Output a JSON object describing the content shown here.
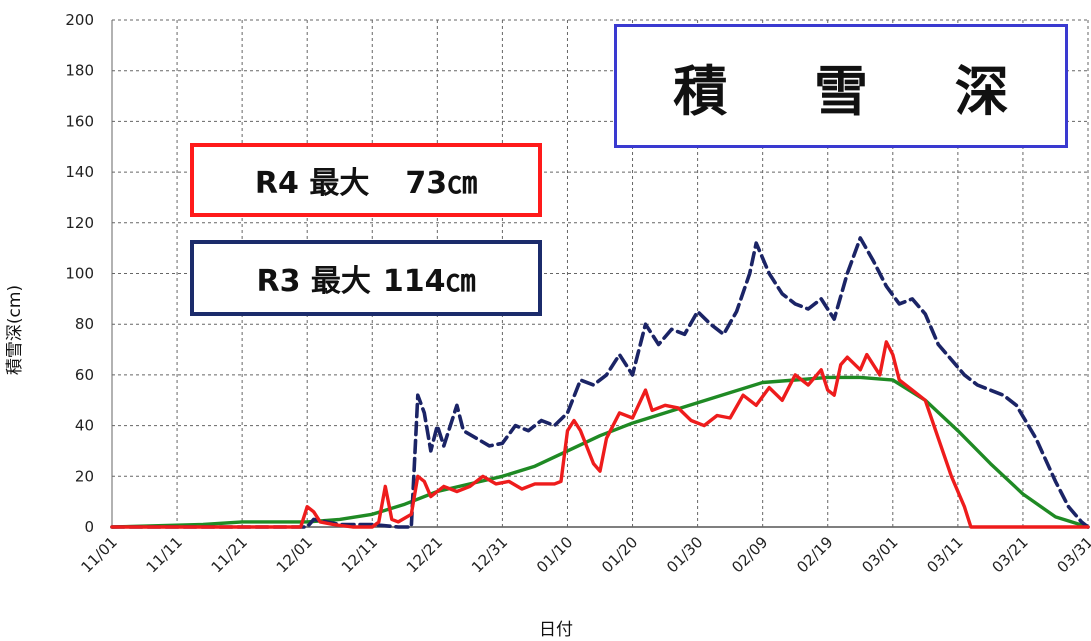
{
  "chart_data": {
    "type": "line",
    "title": "積 雪 深",
    "xlabel": "日付",
    "ylabel": "積雪深(cm)",
    "ylim": [
      0,
      200
    ],
    "yticks": [
      0,
      20,
      40,
      60,
      80,
      100,
      120,
      140,
      160,
      180,
      200
    ],
    "xlim": [
      "11/01",
      "03/31"
    ],
    "xticks": [
      "11/01",
      "11/11",
      "11/21",
      "12/01",
      "12/11",
      "12/21",
      "12/31",
      "01/10",
      "01/20",
      "01/30",
      "02/09",
      "02/19",
      "03/01",
      "03/11",
      "03/21",
      "03/31"
    ],
    "grid": true,
    "annotations": [
      {
        "label": "R4 最大",
        "value": "73㎝"
      },
      {
        "label": "R3 最大",
        "value": "114㎝"
      }
    ],
    "series": [
      {
        "name": "R4",
        "color": "#ee1c1c",
        "style": "solid",
        "points": [
          [
            "11/01",
            0
          ],
          [
            "11/30",
            0
          ],
          [
            "12/01",
            8
          ],
          [
            "12/02",
            6
          ],
          [
            "12/03",
            2
          ],
          [
            "12/05",
            1
          ],
          [
            "12/08",
            0
          ],
          [
            "12/11",
            0
          ],
          [
            "12/12",
            2
          ],
          [
            "12/13",
            16
          ],
          [
            "12/14",
            3
          ],
          [
            "12/15",
            2
          ],
          [
            "12/17",
            5
          ],
          [
            "12/18",
            20
          ],
          [
            "12/19",
            18
          ],
          [
            "12/20",
            12
          ],
          [
            "12/22",
            16
          ],
          [
            "12/24",
            14
          ],
          [
            "12/26",
            16
          ],
          [
            "12/28",
            20
          ],
          [
            "12/30",
            17
          ],
          [
            "01/01",
            18
          ],
          [
            "01/03",
            15
          ],
          [
            "01/05",
            17
          ],
          [
            "01/08",
            17
          ],
          [
            "01/09",
            18
          ],
          [
            "01/10",
            38
          ],
          [
            "01/11",
            42
          ],
          [
            "01/12",
            38
          ],
          [
            "01/14",
            25
          ],
          [
            "01/15",
            22
          ],
          [
            "01/16",
            35
          ],
          [
            "01/18",
            45
          ],
          [
            "01/20",
            43
          ],
          [
            "01/22",
            54
          ],
          [
            "01/23",
            46
          ],
          [
            "01/25",
            48
          ],
          [
            "01/27",
            47
          ],
          [
            "01/29",
            42
          ],
          [
            "01/31",
            40
          ],
          [
            "02/02",
            44
          ],
          [
            "02/04",
            43
          ],
          [
            "02/06",
            52
          ],
          [
            "02/08",
            48
          ],
          [
            "02/10",
            55
          ],
          [
            "02/12",
            50
          ],
          [
            "02/14",
            60
          ],
          [
            "02/16",
            56
          ],
          [
            "02/18",
            62
          ],
          [
            "02/19",
            54
          ],
          [
            "02/20",
            52
          ],
          [
            "02/21",
            64
          ],
          [
            "02/22",
            67
          ],
          [
            "02/24",
            62
          ],
          [
            "02/25",
            68
          ],
          [
            "02/27",
            60
          ],
          [
            "02/28",
            73
          ],
          [
            "03/01",
            68
          ],
          [
            "03/02",
            58
          ],
          [
            "03/04",
            54
          ],
          [
            "03/06",
            50
          ],
          [
            "03/08",
            35
          ],
          [
            "03/10",
            20
          ],
          [
            "03/12",
            8
          ],
          [
            "03/13",
            0
          ],
          [
            "03/31",
            0
          ]
        ]
      },
      {
        "name": "R3",
        "color": "#1b2466",
        "style": "dashed",
        "points": [
          [
            "11/01",
            0
          ],
          [
            "12/01",
            0
          ],
          [
            "12/02",
            3
          ],
          [
            "12/04",
            2
          ],
          [
            "12/06",
            1
          ],
          [
            "12/11",
            1
          ],
          [
            "12/15",
            0
          ],
          [
            "12/17",
            0
          ],
          [
            "12/18",
            52
          ],
          [
            "12/19",
            45
          ],
          [
            "12/20",
            30
          ],
          [
            "12/21",
            40
          ],
          [
            "12/22",
            32
          ],
          [
            "12/24",
            48
          ],
          [
            "12/25",
            38
          ],
          [
            "12/27",
            35
          ],
          [
            "12/29",
            32
          ],
          [
            "12/31",
            33
          ],
          [
            "01/02",
            40
          ],
          [
            "01/04",
            38
          ],
          [
            "01/06",
            42
          ],
          [
            "01/08",
            40
          ],
          [
            "01/10",
            45
          ],
          [
            "01/12",
            58
          ],
          [
            "01/14",
            56
          ],
          [
            "01/16",
            60
          ],
          [
            "01/18",
            68
          ],
          [
            "01/20",
            60
          ],
          [
            "01/22",
            80
          ],
          [
            "01/24",
            72
          ],
          [
            "01/26",
            78
          ],
          [
            "01/28",
            76
          ],
          [
            "01/30",
            85
          ],
          [
            "02/01",
            80
          ],
          [
            "02/03",
            76
          ],
          [
            "02/05",
            85
          ],
          [
            "02/07",
            100
          ],
          [
            "02/08",
            112
          ],
          [
            "02/10",
            100
          ],
          [
            "02/12",
            92
          ],
          [
            "02/14",
            88
          ],
          [
            "02/16",
            86
          ],
          [
            "02/18",
            90
          ],
          [
            "02/20",
            82
          ],
          [
            "02/22",
            100
          ],
          [
            "02/24",
            114
          ],
          [
            "02/26",
            105
          ],
          [
            "02/28",
            95
          ],
          [
            "03/02",
            88
          ],
          [
            "03/04",
            90
          ],
          [
            "03/06",
            84
          ],
          [
            "03/08",
            72
          ],
          [
            "03/10",
            66
          ],
          [
            "03/12",
            60
          ],
          [
            "03/14",
            56
          ],
          [
            "03/16",
            54
          ],
          [
            "03/18",
            52
          ],
          [
            "03/20",
            48
          ],
          [
            "03/23",
            35
          ],
          [
            "03/26",
            18
          ],
          [
            "03/28",
            8
          ],
          [
            "03/30",
            2
          ],
          [
            "03/31",
            0
          ]
        ]
      },
      {
        "name": "",
        "color": "#1f8a24",
        "style": "solid",
        "points": [
          [
            "11/01",
            0
          ],
          [
            "11/15",
            1
          ],
          [
            "11/21",
            2
          ],
          [
            "12/01",
            2
          ],
          [
            "12/06",
            3
          ],
          [
            "12/11",
            5
          ],
          [
            "12/16",
            9
          ],
          [
            "12/21",
            14
          ],
          [
            "12/26",
            17
          ],
          [
            "12/31",
            20
          ],
          [
            "01/05",
            24
          ],
          [
            "01/10",
            30
          ],
          [
            "01/15",
            36
          ],
          [
            "01/20",
            41
          ],
          [
            "01/25",
            45
          ],
          [
            "01/30",
            49
          ],
          [
            "02/04",
            53
          ],
          [
            "02/09",
            57
          ],
          [
            "02/14",
            58
          ],
          [
            "02/19",
            59
          ],
          [
            "02/24",
            59
          ],
          [
            "03/01",
            58
          ],
          [
            "03/06",
            50
          ],
          [
            "03/11",
            38
          ],
          [
            "03/16",
            25
          ],
          [
            "03/21",
            13
          ],
          [
            "03/26",
            4
          ],
          [
            "03/31",
            0
          ]
        ]
      }
    ]
  }
}
